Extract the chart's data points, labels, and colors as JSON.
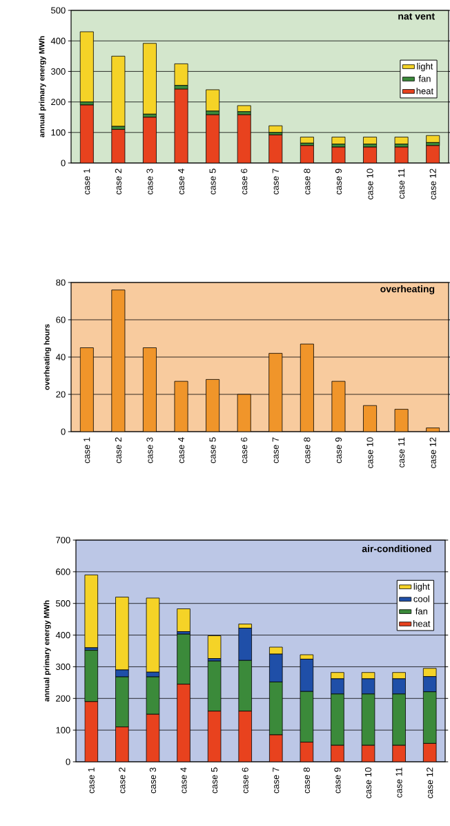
{
  "chart_data": [
    {
      "type": "bar",
      "title": "nat vent",
      "ylabel": "annual primary energy MWh",
      "stacked": true,
      "grid": "y",
      "legend": "right",
      "categories": [
        "case 1",
        "case 2",
        "case 3",
        "case 4",
        "case 5",
        "case 6",
        "case 7",
        "case 8",
        "case 9",
        "case 10",
        "case 11",
        "case 12"
      ],
      "ylim": [
        0,
        500
      ],
      "yticks": [
        0,
        100,
        200,
        300,
        400,
        500
      ],
      "series": [
        {
          "name": "heat",
          "color": "#e8421e",
          "values": [
            190,
            110,
            150,
            242,
            158,
            158,
            92,
            57,
            52,
            52,
            52,
            57
          ]
        },
        {
          "name": "fan",
          "color": "#3b8a3a",
          "values": [
            10,
            10,
            10,
            12,
            12,
            10,
            8,
            8,
            10,
            10,
            10,
            10
          ]
        },
        {
          "name": "light",
          "color": "#f5d327",
          "values": [
            230,
            230,
            232,
            71,
            70,
            20,
            22,
            20,
            23,
            23,
            23,
            23
          ]
        }
      ]
    },
    {
      "type": "bar",
      "title": "overheating",
      "ylabel": "overheating hours",
      "grid": "y",
      "color": "#f0952a",
      "categories": [
        "case 1",
        "case 2",
        "case 3",
        "case 4",
        "case 5",
        "case 6",
        "case 7",
        "case 8",
        "case 9",
        "case 10",
        "case 11",
        "case 12"
      ],
      "ylim": [
        0,
        80
      ],
      "yticks": [
        0,
        20,
        40,
        60,
        80
      ],
      "values": [
        45,
        76,
        45,
        27,
        28,
        20,
        42,
        47,
        27,
        14,
        12,
        2
      ]
    },
    {
      "type": "bar",
      "title": "air-conditioned",
      "ylabel": "annual primary energy MWh",
      "stacked": true,
      "grid": "y",
      "legend": "top right",
      "categories": [
        "case 1",
        "case 2",
        "case 3",
        "case 4",
        "case 5",
        "case 6",
        "case 7",
        "case 8",
        "case 9",
        "case 10",
        "case 11",
        "case 12"
      ],
      "ylim": [
        0,
        700
      ],
      "yticks": [
        0,
        100,
        200,
        300,
        400,
        500,
        600,
        700
      ],
      "series": [
        {
          "name": "heat",
          "color": "#e8421e",
          "values": [
            190,
            110,
            150,
            245,
            160,
            160,
            85,
            62,
            52,
            52,
            52,
            58
          ]
        },
        {
          "name": "fan",
          "color": "#3b8a3a",
          "values": [
            162,
            158,
            118,
            158,
            158,
            160,
            167,
            160,
            162,
            162,
            162,
            163
          ]
        },
        {
          "name": "cool",
          "color": "#1f4fa8",
          "values": [
            8,
            22,
            15,
            8,
            8,
            102,
            88,
            102,
            48,
            48,
            48,
            48
          ]
        },
        {
          "name": "light",
          "color": "#f5d327",
          "values": [
            230,
            230,
            234,
            72,
            72,
            13,
            22,
            14,
            20,
            20,
            20,
            26
          ]
        }
      ]
    }
  ]
}
